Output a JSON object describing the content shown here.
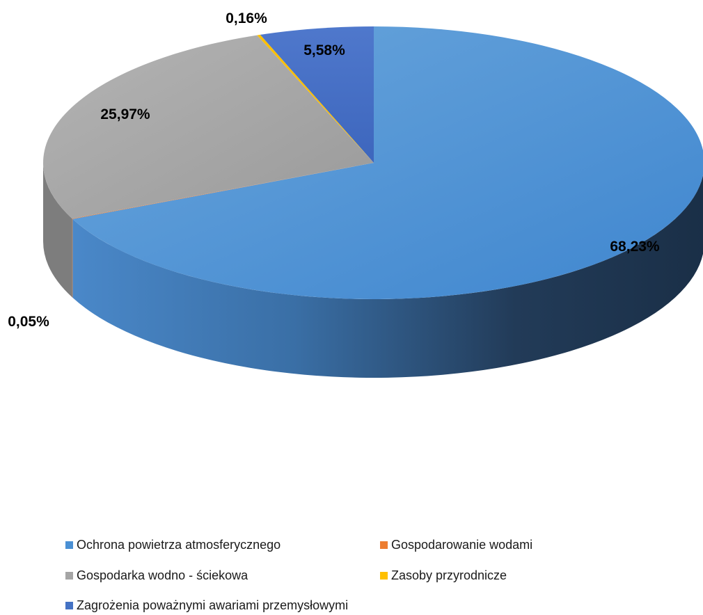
{
  "chart_data": {
    "type": "pie",
    "title": "",
    "variant": "3d",
    "legend_position": "bottom",
    "series": [
      {
        "label": "Ochrona powietrza atmosferycznego",
        "value": 68.23,
        "display": "68,23%",
        "color": "#4a90d4"
      },
      {
        "label": "Gospodarowanie wodami",
        "value": 0.05,
        "display": "0,05%",
        "color": "#ed7d31"
      },
      {
        "label": "Gospodarka wodno - ściekowa",
        "value": 25.97,
        "display": "25,97%",
        "color": "#a5a5a5"
      },
      {
        "label": "Zasoby przyrodnicze",
        "value": 0.16,
        "display": "0,16%",
        "color": "#ffc000"
      },
      {
        "label": "Zagrożenia poważnymi awariami przemysłowymi",
        "value": 5.58,
        "display": "5,58%",
        "color": "#4472c4"
      }
    ]
  }
}
